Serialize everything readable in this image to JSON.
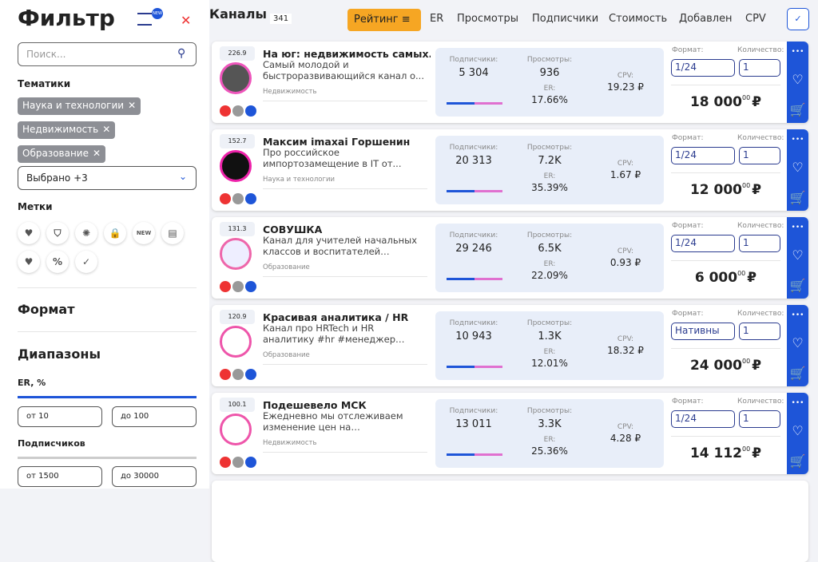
{
  "sidebar": {
    "title": "Фильтр",
    "new_badge": "NEW",
    "search_placeholder": "Поиск...",
    "topics_label": "Тематики",
    "topics": [
      "Наука и технологии",
      "Недвижимость",
      "Образование"
    ],
    "selected": "Выбрано +3",
    "tags_label": "Метки",
    "tag_new": "NEW",
    "format": "Формат",
    "ranges": "Диапазоны",
    "er_label": "ER, %",
    "er_from": "от 10",
    "er_to": "до 100",
    "subs_label": "Подписчиков",
    "subs_from": "от 1500",
    "subs_to": "до 30000"
  },
  "topbar": {
    "channels": "Каналы",
    "count": "341",
    "sort": "Рейтинг",
    "columns": [
      "ER",
      "Просмотры",
      "Подписчики",
      "Стоимость",
      "Добавлен",
      "CPV"
    ]
  },
  "labels": {
    "subs": "Подписчики:",
    "views": "Просмотры:",
    "er": "ER:",
    "cpv": "CPV:",
    "format": "Формат:",
    "qty": "Количество:",
    "cents": "00",
    "currency": "₽"
  },
  "cards": [
    {
      "rank": "226.9",
      "name": "На юг: недвижимость самых...",
      "desc": "Самый молодой и быстроразвивающийся канал о...",
      "category": "Недвижимость",
      "subs": "5 304",
      "views": "936",
      "er": "17.66%",
      "cpv": "19.23 ₽",
      "format": "1/24",
      "qty": "1",
      "price": "18 000"
    },
    {
      "rank": "152.7",
      "name": "Максим imaxai Горшенин",
      "desc": "Про российское импортозамещение в IT от...",
      "category": "Наука и технологии",
      "subs": "20 313",
      "views": "7.2K",
      "er": "35.39%",
      "cpv": "1.67 ₽",
      "format": "1/24",
      "qty": "1",
      "price": "12 000"
    },
    {
      "rank": "131.3",
      "name": "СОВУШКА",
      "desc": "Канал для учителей начальных классов и воспитателей детского...",
      "category": "Образование",
      "subs": "29 246",
      "views": "6.5K",
      "er": "22.09%",
      "cpv": "0.93 ₽",
      "format": "1/24",
      "qty": "1",
      "price": "6 000"
    },
    {
      "rank": "120.9",
      "name": "Красивая аналитика / HR",
      "desc": "Канал про HRTech и HR аналитику #hr #менеджер #рекрутер...",
      "category": "Образование",
      "subs": "10 943",
      "views": "1.3K",
      "er": "12.01%",
      "cpv": "18.32 ₽",
      "format": "Нативны",
      "qty": "1",
      "price": "24 000"
    },
    {
      "rank": "100.1",
      "name": "Подешевело МСК",
      "desc": "Ежедневно мы отслеживаем изменение цен на недвижимость...",
      "category": "Недвижимость",
      "subs": "13 011",
      "views": "3.3K",
      "er": "25.36%",
      "cpv": "4.28 ₽",
      "format": "1/24",
      "qty": "1",
      "price": "14 112"
    }
  ]
}
